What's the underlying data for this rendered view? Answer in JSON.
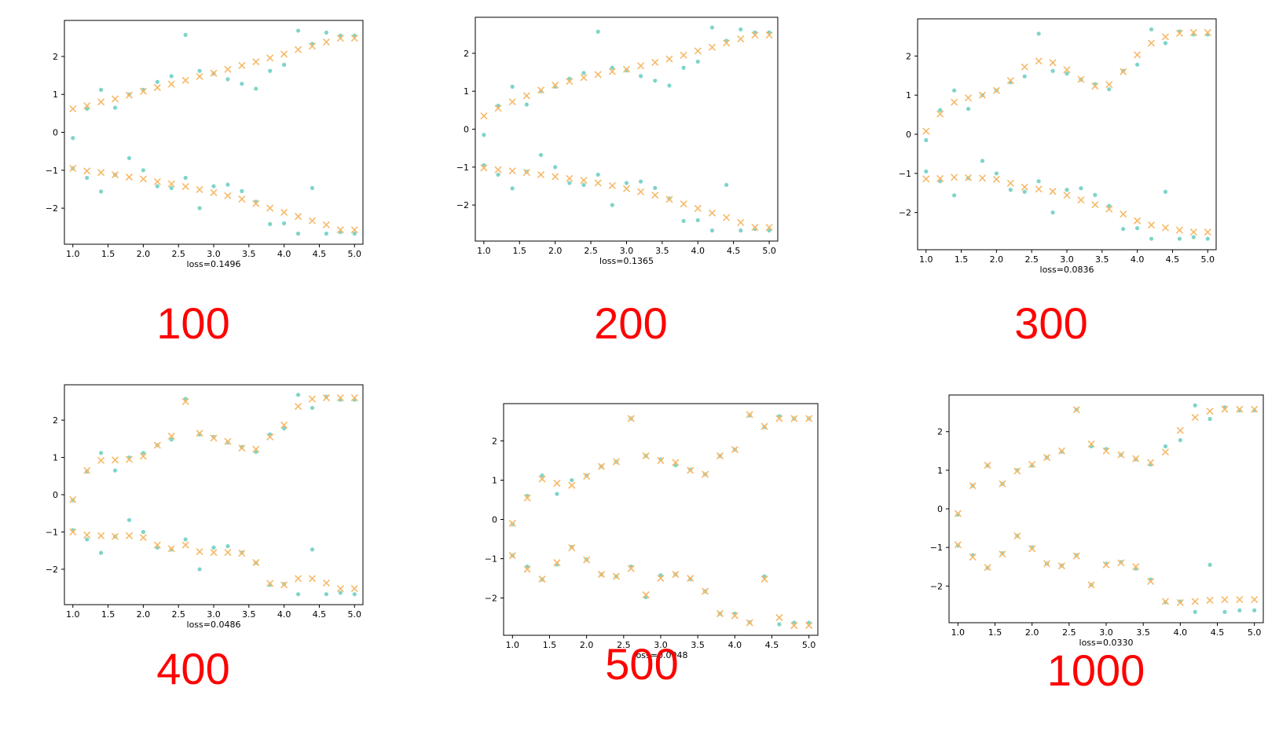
{
  "colors": {
    "actual": "#7fd4c8",
    "predicted": "#f6b969",
    "label": "#ff0000",
    "axis": "#000000"
  },
  "chart_data": [
    {
      "type": "scatter",
      "caption": "100",
      "xlabel": "loss=0.1496",
      "xlim": [
        0.88,
        5.12
      ],
      "ylim": [
        -2.95,
        2.95
      ],
      "xticks": [
        "1.0",
        "1.5",
        "2.0",
        "2.5",
        "3.0",
        "3.5",
        "4.0",
        "4.5",
        "5.0"
      ],
      "yticks": [
        "−2",
        "−1",
        "0",
        "1",
        "2"
      ],
      "x": [
        1.0,
        1.2,
        1.4,
        1.6,
        1.8,
        2.0,
        2.2,
        2.4,
        2.6,
        2.8,
        3.0,
        3.2,
        3.4,
        3.6,
        3.8,
        4.0,
        4.2,
        4.4,
        4.6,
        4.8,
        5.0
      ],
      "series": [
        {
          "marker": "dot",
          "upper": [
            -0.15,
            0.62,
            1.12,
            0.65,
            1.0,
            1.12,
            1.33,
            1.48,
            2.57,
            1.62,
            1.55,
            1.4,
            1.28,
            1.15,
            1.62,
            1.78,
            2.68,
            2.33,
            2.63,
            2.55,
            2.55
          ],
          "lower": [
            -0.95,
            -1.2,
            -1.56,
            -1.12,
            -0.68,
            -1.0,
            -1.42,
            -1.47,
            -1.2,
            -2.0,
            -1.42,
            -1.38,
            -1.55,
            -1.83,
            -2.42,
            -2.4,
            -2.67,
            -1.47,
            -2.67,
            -2.63,
            -2.67
          ]
        },
        {
          "marker": "cross",
          "upper": [
            0.62,
            0.7,
            0.8,
            0.88,
            0.98,
            1.08,
            1.18,
            1.27,
            1.37,
            1.47,
            1.56,
            1.66,
            1.76,
            1.86,
            1.96,
            2.06,
            2.18,
            2.27,
            2.38,
            2.48,
            2.48
          ],
          "lower": [
            -0.95,
            -1.02,
            -1.06,
            -1.12,
            -1.18,
            -1.23,
            -1.3,
            -1.36,
            -1.43,
            -1.51,
            -1.59,
            -1.67,
            -1.76,
            -1.88,
            -2.0,
            -2.11,
            -2.22,
            -2.33,
            -2.44,
            -2.57,
            -2.57
          ]
        }
      ]
    },
    {
      "type": "scatter",
      "caption": "200",
      "xlabel": "loss=0.1365",
      "xlim": [
        0.88,
        5.12
      ],
      "ylim": [
        -2.95,
        2.95
      ],
      "xticks": [
        "1.0",
        "1.5",
        "2.0",
        "2.5",
        "3.0",
        "3.5",
        "4.0",
        "4.5",
        "5.0"
      ],
      "yticks": [
        "−2",
        "−1",
        "0",
        "1",
        "2"
      ],
      "x": [
        1.0,
        1.2,
        1.4,
        1.6,
        1.8,
        2.0,
        2.2,
        2.4,
        2.6,
        2.8,
        3.0,
        3.2,
        3.4,
        3.6,
        3.8,
        4.0,
        4.2,
        4.4,
        4.6,
        4.8,
        5.0
      ],
      "series": [
        {
          "marker": "dot",
          "upper": [
            -0.15,
            0.62,
            1.12,
            0.65,
            1.0,
            1.12,
            1.33,
            1.48,
            2.57,
            1.62,
            1.55,
            1.4,
            1.28,
            1.15,
            1.62,
            1.78,
            2.68,
            2.33,
            2.63,
            2.55,
            2.55
          ],
          "lower": [
            -0.95,
            -1.2,
            -1.56,
            -1.12,
            -0.68,
            -1.0,
            -1.42,
            -1.47,
            -1.2,
            -2.0,
            -1.42,
            -1.38,
            -1.55,
            -1.83,
            -2.42,
            -2.4,
            -2.67,
            -1.47,
            -2.67,
            -2.63,
            -2.67
          ]
        },
        {
          "marker": "cross",
          "upper": [
            0.35,
            0.55,
            0.72,
            0.88,
            1.03,
            1.16,
            1.26,
            1.36,
            1.44,
            1.52,
            1.58,
            1.67,
            1.76,
            1.85,
            1.95,
            2.06,
            2.16,
            2.27,
            2.38,
            2.48,
            2.48
          ],
          "lower": [
            -1.02,
            -1.07,
            -1.1,
            -1.14,
            -1.2,
            -1.25,
            -1.3,
            -1.35,
            -1.42,
            -1.49,
            -1.57,
            -1.65,
            -1.74,
            -1.85,
            -1.97,
            -2.09,
            -2.21,
            -2.33,
            -2.46,
            -2.59,
            -2.59
          ]
        }
      ]
    },
    {
      "type": "scatter",
      "caption": "300",
      "xlabel": "loss=0.0836",
      "xlim": [
        0.88,
        5.12
      ],
      "ylim": [
        -2.95,
        2.95
      ],
      "xticks": [
        "1.0",
        "1.5",
        "2.0",
        "2.5",
        "3.0",
        "3.5",
        "4.0",
        "4.5",
        "5.0"
      ],
      "yticks": [
        "−2",
        "−1",
        "0",
        "1",
        "2"
      ],
      "x": [
        1.0,
        1.2,
        1.4,
        1.6,
        1.8,
        2.0,
        2.2,
        2.4,
        2.6,
        2.8,
        3.0,
        3.2,
        3.4,
        3.6,
        3.8,
        4.0,
        4.2,
        4.4,
        4.6,
        4.8,
        5.0
      ],
      "series": [
        {
          "marker": "dot",
          "upper": [
            -0.15,
            0.62,
            1.12,
            0.65,
            1.0,
            1.12,
            1.33,
            1.48,
            2.57,
            1.62,
            1.55,
            1.4,
            1.28,
            1.15,
            1.62,
            1.78,
            2.68,
            2.33,
            2.63,
            2.55,
            2.55
          ],
          "lower": [
            -0.95,
            -1.2,
            -1.56,
            -1.12,
            -0.68,
            -1.0,
            -1.42,
            -1.47,
            -1.2,
            -2.0,
            -1.42,
            -1.38,
            -1.55,
            -1.83,
            -2.42,
            -2.4,
            -2.67,
            -1.47,
            -2.67,
            -2.63,
            -2.67
          ]
        },
        {
          "marker": "cross",
          "upper": [
            0.08,
            0.52,
            0.82,
            0.93,
            1.0,
            1.12,
            1.37,
            1.72,
            1.87,
            1.83,
            1.65,
            1.4,
            1.23,
            1.27,
            1.6,
            2.03,
            2.33,
            2.49,
            2.58,
            2.6,
            2.6
          ],
          "lower": [
            -1.14,
            -1.13,
            -1.1,
            -1.11,
            -1.12,
            -1.15,
            -1.25,
            -1.35,
            -1.4,
            -1.46,
            -1.56,
            -1.68,
            -1.8,
            -1.91,
            -2.04,
            -2.21,
            -2.32,
            -2.39,
            -2.45,
            -2.5,
            -2.5
          ]
        }
      ]
    },
    {
      "type": "scatter",
      "caption": "400",
      "xlabel": "loss=0.0486",
      "xlim": [
        0.88,
        5.12
      ],
      "ylim": [
        -2.95,
        2.95
      ],
      "xticks": [
        "1.0",
        "1.5",
        "2.0",
        "2.5",
        "3.0",
        "3.5",
        "4.0",
        "4.5",
        "5.0"
      ],
      "yticks": [
        "−2",
        "−1",
        "0",
        "1",
        "2"
      ],
      "x": [
        1.0,
        1.2,
        1.4,
        1.6,
        1.8,
        2.0,
        2.2,
        2.4,
        2.6,
        2.8,
        3.0,
        3.2,
        3.4,
        3.6,
        3.8,
        4.0,
        4.2,
        4.4,
        4.6,
        4.8,
        5.0
      ],
      "series": [
        {
          "marker": "dot",
          "upper": [
            -0.15,
            0.62,
            1.12,
            0.65,
            1.0,
            1.12,
            1.33,
            1.48,
            2.57,
            1.62,
            1.55,
            1.4,
            1.28,
            1.15,
            1.62,
            1.78,
            2.68,
            2.33,
            2.63,
            2.55,
            2.55
          ],
          "lower": [
            -0.95,
            -1.2,
            -1.56,
            -1.12,
            -0.68,
            -1.0,
            -1.42,
            -1.47,
            -1.2,
            -2.0,
            -1.42,
            -1.38,
            -1.55,
            -1.83,
            -2.42,
            -2.4,
            -2.67,
            -1.47,
            -2.67,
            -2.63,
            -2.67
          ]
        },
        {
          "marker": "cross",
          "upper": [
            -0.13,
            0.65,
            0.92,
            0.93,
            0.95,
            1.03,
            1.33,
            1.57,
            2.5,
            1.65,
            1.52,
            1.43,
            1.25,
            1.22,
            1.55,
            1.87,
            2.37,
            2.57,
            2.6,
            2.6,
            2.6
          ],
          "lower": [
            -1.0,
            -1.08,
            -1.1,
            -1.12,
            -1.1,
            -1.15,
            -1.35,
            -1.45,
            -1.35,
            -1.53,
            -1.55,
            -1.55,
            -1.57,
            -1.82,
            -2.38,
            -2.42,
            -2.25,
            -2.25,
            -2.37,
            -2.52,
            -2.52
          ]
        }
      ]
    },
    {
      "type": "scatter",
      "caption": "500",
      "xlabel": "loss=0.0048",
      "xlim": [
        0.88,
        5.12
      ],
      "ylim": [
        -2.95,
        2.95
      ],
      "xticks": [
        "1.0",
        "1.5",
        "2.0",
        "2.5",
        "3.0",
        "3.5",
        "4.0",
        "4.5",
        "5.0"
      ],
      "yticks": [
        "−2",
        "−1",
        "0",
        "1",
        "2"
      ],
      "x": [
        1.0,
        1.2,
        1.4,
        1.6,
        1.8,
        2.0,
        2.2,
        2.4,
        2.6,
        2.8,
        3.0,
        3.2,
        3.4,
        3.6,
        3.8,
        4.0,
        4.2,
        4.4,
        4.6,
        4.8,
        5.0
      ],
      "series": [
        {
          "marker": "dot",
          "upper": [
            -0.12,
            0.6,
            1.12,
            0.65,
            1.0,
            1.12,
            1.35,
            1.47,
            2.57,
            1.62,
            1.53,
            1.38,
            1.27,
            1.15,
            1.62,
            1.78,
            2.65,
            2.35,
            2.63,
            2.57,
            2.57
          ],
          "lower": [
            -0.92,
            -1.2,
            -1.53,
            -1.15,
            -0.7,
            -1.02,
            -1.4,
            -1.45,
            -1.2,
            -1.98,
            -1.42,
            -1.4,
            -1.52,
            -1.83,
            -2.4,
            -2.4,
            -2.62,
            -1.45,
            -2.67,
            -2.63,
            -2.63
          ]
        },
        {
          "marker": "cross",
          "upper": [
            -0.1,
            0.55,
            1.03,
            0.92,
            0.87,
            1.1,
            1.35,
            1.47,
            2.57,
            1.62,
            1.5,
            1.45,
            1.25,
            1.15,
            1.62,
            1.78,
            2.67,
            2.37,
            2.57,
            2.57,
            2.57
          ],
          "lower": [
            -0.92,
            -1.27,
            -1.52,
            -1.1,
            -0.72,
            -1.03,
            -1.4,
            -1.45,
            -1.25,
            -1.92,
            -1.5,
            -1.4,
            -1.5,
            -1.83,
            -2.4,
            -2.45,
            -2.63,
            -1.52,
            -2.5,
            -2.7,
            -2.7
          ]
        }
      ]
    },
    {
      "type": "scatter",
      "caption": "1000",
      "xlabel": "loss=0.0330",
      "xlim": [
        0.88,
        5.12
      ],
      "ylim": [
        -2.95,
        2.95
      ],
      "xticks": [
        "1.0",
        "1.5",
        "2.0",
        "2.5",
        "3.0",
        "3.5",
        "4.0",
        "4.5",
        "5.0"
      ],
      "yticks": [
        "−2",
        "−1",
        "0",
        "1",
        "2"
      ],
      "x": [
        1.0,
        1.2,
        1.4,
        1.6,
        1.8,
        2.0,
        2.2,
        2.4,
        2.6,
        2.8,
        3.0,
        3.2,
        3.4,
        3.6,
        3.8,
        4.0,
        4.2,
        4.4,
        4.6,
        4.8,
        5.0
      ],
      "series": [
        {
          "marker": "dot",
          "upper": [
            -0.15,
            0.6,
            1.12,
            0.65,
            1.0,
            1.12,
            1.33,
            1.48,
            2.57,
            1.62,
            1.55,
            1.4,
            1.28,
            1.15,
            1.62,
            1.78,
            2.68,
            2.33,
            2.63,
            2.55,
            2.55
          ],
          "lower": [
            -0.95,
            -1.2,
            -1.53,
            -1.15,
            -0.7,
            -1.0,
            -1.42,
            -1.47,
            -1.2,
            -1.97,
            -1.42,
            -1.38,
            -1.55,
            -1.83,
            -2.42,
            -2.4,
            -2.67,
            -1.45,
            -2.67,
            -2.63,
            -2.63
          ]
        },
        {
          "marker": "cross",
          "upper": [
            -0.12,
            0.6,
            1.13,
            0.65,
            0.98,
            1.15,
            1.33,
            1.5,
            2.57,
            1.68,
            1.5,
            1.4,
            1.3,
            1.2,
            1.47,
            2.03,
            2.37,
            2.53,
            2.58,
            2.58,
            2.58
          ],
          "lower": [
            -0.93,
            -1.25,
            -1.52,
            -1.17,
            -0.7,
            -1.03,
            -1.42,
            -1.48,
            -1.22,
            -1.97,
            -1.45,
            -1.4,
            -1.5,
            -1.88,
            -2.4,
            -2.43,
            -2.4,
            -2.37,
            -2.35,
            -2.35,
            -2.35
          ]
        }
      ]
    }
  ]
}
